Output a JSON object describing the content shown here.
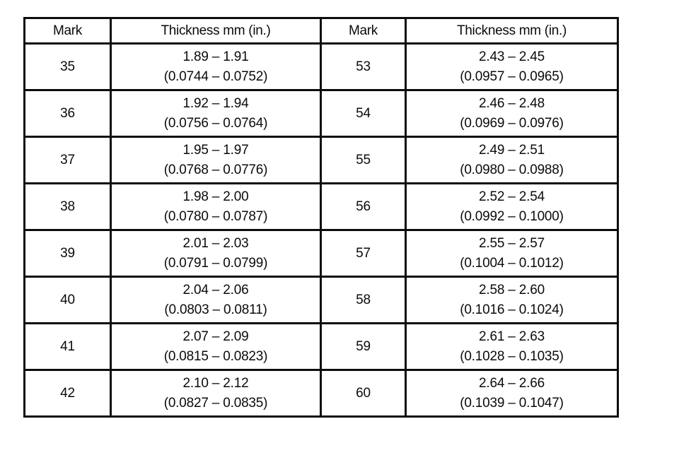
{
  "table": {
    "description": "Shim thickness selection table",
    "border_color": "#0d0d0d",
    "text_color": "#0b0b0b",
    "headers": [
      "Mark",
      "Thickness mm (in.)",
      "Mark",
      "Thickness mm (in.)"
    ],
    "rows": [
      {
        "left": {
          "mark": "35",
          "mm": "1.89 – 1.91",
          "in": "(0.0744 – 0.0752)"
        },
        "right": {
          "mark": "53",
          "mm": "2.43 – 2.45",
          "in": "(0.0957 – 0.0965)"
        }
      },
      {
        "left": {
          "mark": "36",
          "mm": "1.92 – 1.94",
          "in": "(0.0756 – 0.0764)"
        },
        "right": {
          "mark": "54",
          "mm": "2.46 – 2.48",
          "in": "(0.0969 – 0.0976)"
        }
      },
      {
        "left": {
          "mark": "37",
          "mm": "1.95 – 1.97",
          "in": "(0.0768 – 0.0776)"
        },
        "right": {
          "mark": "55",
          "mm": "2.49 – 2.51",
          "in": "(0.0980 – 0.0988)"
        }
      },
      {
        "left": {
          "mark": "38",
          "mm": "1.98 – 2.00",
          "in": "(0.0780 – 0.0787)"
        },
        "right": {
          "mark": "56",
          "mm": "2.52 – 2.54",
          "in": "(0.0992 – 0.1000)"
        }
      },
      {
        "left": {
          "mark": "39",
          "mm": "2.01 – 2.03",
          "in": "(0.0791 – 0.0799)"
        },
        "right": {
          "mark": "57",
          "mm": "2.55 – 2.57",
          "in": "(0.1004 – 0.1012)"
        }
      },
      {
        "left": {
          "mark": "40",
          "mm": "2.04 – 2.06",
          "in": "(0.0803 – 0.0811)"
        },
        "right": {
          "mark": "58",
          "mm": "2.58 – 2.60",
          "in": "(0.1016 – 0.1024)"
        }
      },
      {
        "left": {
          "mark": "41",
          "mm": "2.07 – 2.09",
          "in": "(0.0815 – 0.0823)"
        },
        "right": {
          "mark": "59",
          "mm": "2.61 – 2.63",
          "in": "(0.1028 – 0.1035)"
        }
      },
      {
        "left": {
          "mark": "42",
          "mm": "2.10 – 2.12",
          "in": "(0.0827 – 0.0835)"
        },
        "right": {
          "mark": "60",
          "mm": "2.64 – 2.66",
          "in": "(0.1039 – 0.1047)"
        }
      }
    ]
  }
}
